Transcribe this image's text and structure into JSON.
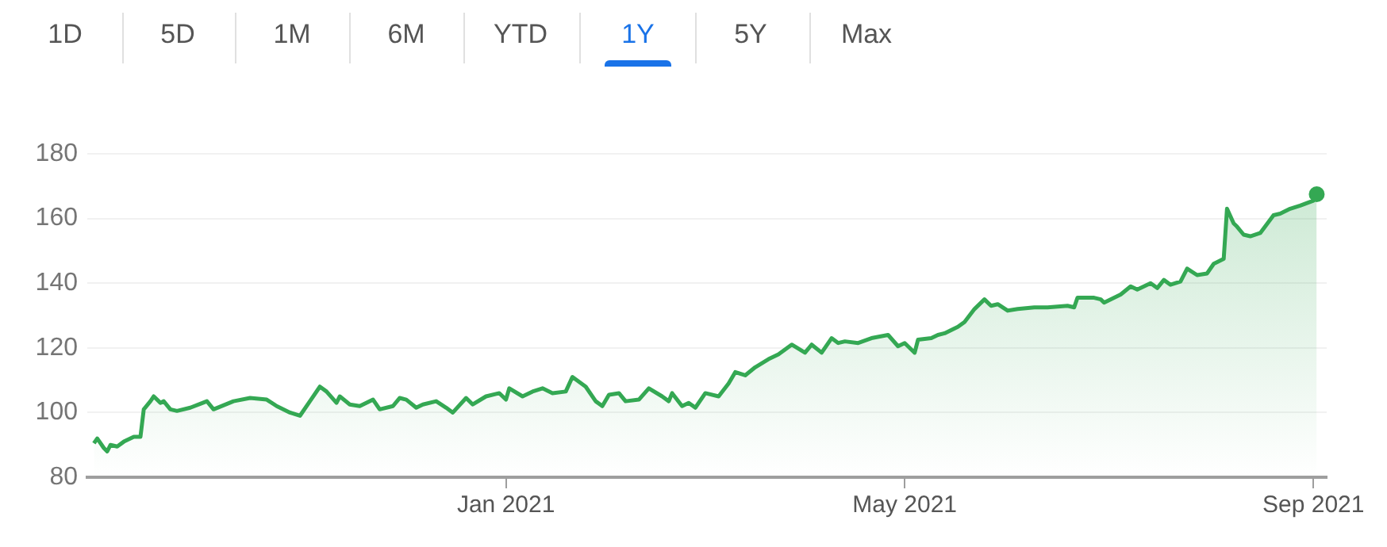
{
  "chart_data": {
    "type": "area",
    "annotations": [
      "1D",
      "5D",
      "1M",
      "6M",
      "YTD",
      "1Y",
      "5Y",
      "Max"
    ],
    "x": [
      "2020-08-30",
      "2020-08-31",
      "2020-09-02",
      "2020-09-03",
      "2020-09-04",
      "2020-09-06",
      "2020-09-08",
      "2020-09-10",
      "2020-09-11",
      "2020-09-13",
      "2020-09-14",
      "2020-09-16",
      "2020-09-17",
      "2020-09-19",
      "2020-09-20",
      "2020-09-22",
      "2020-09-24",
      "2020-09-28",
      "2020-10-03",
      "2020-10-05",
      "2020-10-11",
      "2020-10-16",
      "2020-10-21",
      "2020-10-24",
      "2020-10-28",
      "2020-10-31",
      "2020-11-03",
      "2020-11-06",
      "2020-11-08",
      "2020-11-11",
      "2020-11-12",
      "2020-11-15",
      "2020-11-18",
      "2020-11-22",
      "2020-11-24",
      "2020-11-28",
      "2020-11-30",
      "2020-12-02",
      "2020-12-05",
      "2020-12-07",
      "2020-12-11",
      "2020-12-14",
      "2020-12-16",
      "2020-12-20",
      "2020-12-22",
      "2020-12-26",
      "2020-12-30",
      "2021-01-01",
      "2021-01-02",
      "2021-01-06",
      "2021-01-09",
      "2021-01-12",
      "2021-01-15",
      "2021-01-19",
      "2021-01-21",
      "2021-01-25",
      "2021-01-28",
      "2021-01-30",
      "2021-02-01",
      "2021-02-04",
      "2021-02-06",
      "2021-02-10",
      "2021-02-13",
      "2021-02-17",
      "2021-02-19",
      "2021-02-20",
      "2021-02-23",
      "2021-02-25",
      "2021-02-27",
      "2021-03-02",
      "2021-03-06",
      "2021-03-09",
      "2021-03-11",
      "2021-03-14",
      "2021-03-17",
      "2021-03-21",
      "2021-03-24",
      "2021-03-28",
      "2021-04-01",
      "2021-04-03",
      "2021-04-06",
      "2021-04-09",
      "2021-04-11",
      "2021-04-13",
      "2021-04-17",
      "2021-04-21",
      "2021-04-26",
      "2021-04-29",
      "2021-05-01",
      "2021-05-04",
      "2021-05-05",
      "2021-05-09",
      "2021-05-11",
      "2021-05-13",
      "2021-05-17",
      "2021-05-19",
      "2021-05-22",
      "2021-05-25",
      "2021-05-27",
      "2021-05-29",
      "2021-06-01",
      "2021-06-04",
      "2021-06-09",
      "2021-06-13",
      "2021-06-19",
      "2021-06-21",
      "2021-06-22",
      "2021-06-27",
      "2021-06-29",
      "2021-06-30",
      "2021-07-05",
      "2021-07-08",
      "2021-07-10",
      "2021-07-14",
      "2021-07-16",
      "2021-07-18",
      "2021-07-20",
      "2021-07-23",
      "2021-07-25",
      "2021-07-28",
      "2021-07-31",
      "2021-08-02",
      "2021-08-05",
      "2021-08-06",
      "2021-08-08",
      "2021-08-09",
      "2021-08-11",
      "2021-08-13",
      "2021-08-16",
      "2021-08-20",
      "2021-08-22",
      "2021-08-25",
      "2021-08-28",
      "2021-09-01",
      "2021-09-02"
    ],
    "values": [
      90.5,
      92,
      89,
      88,
      90,
      89.5,
      91,
      92,
      92.5,
      92.5,
      101,
      103.5,
      105,
      103,
      103.5,
      101,
      100.5,
      101.5,
      103.5,
      101,
      103.5,
      104.5,
      104,
      102,
      100,
      99,
      103.5,
      108,
      106.5,
      103,
      105,
      102.5,
      102,
      104,
      101,
      102,
      104.5,
      104,
      101.5,
      102.5,
      103.5,
      101.5,
      100,
      104.5,
      102.5,
      105,
      106,
      104,
      107.5,
      105,
      106.5,
      107.5,
      106,
      106.5,
      111,
      108,
      103.5,
      102,
      105.5,
      106,
      103.5,
      104,
      107.5,
      105,
      103.5,
      106,
      102,
      103,
      101.5,
      106,
      105,
      109,
      112.5,
      111.5,
      114,
      116.5,
      118,
      121,
      118.5,
      121,
      118.5,
      123,
      121.5,
      122,
      121.5,
      123,
      124,
      120.5,
      121.5,
      118.5,
      122.5,
      123,
      124,
      124.5,
      126.5,
      128,
      132,
      135,
      133,
      133.5,
      131.5,
      132,
      132.5,
      132.5,
      133,
      132.5,
      135.5,
      135.5,
      135,
      134,
      136.5,
      139,
      138,
      140,
      138.5,
      141,
      139.5,
      140.5,
      144.5,
      142.5,
      143,
      146,
      147.5,
      163,
      158.5,
      157.5,
      155,
      154.5,
      155.5,
      161,
      161.5,
      163,
      164,
      165.5,
      167.5
    ],
    "color": "#34a853",
    "xlim": [
      "2020-08-28",
      "2021-09-05"
    ],
    "xticks": [
      {
        "value": "2021-01-01",
        "label": "Jan 2021"
      },
      {
        "value": "2021-05-01",
        "label": "May 2021"
      },
      {
        "value": "2021-09-01",
        "label": "Sep 2021"
      }
    ],
    "ylim": [
      80,
      180
    ],
    "yticks": [
      80,
      100,
      120,
      140,
      160,
      180
    ],
    "grid": "y"
  }
}
